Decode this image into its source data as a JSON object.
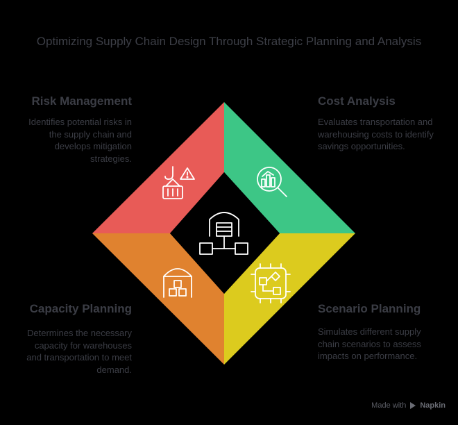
{
  "title": "Optimizing Supply Chain Design Through Strategic Planning and Analysis",
  "quadrants": [
    {
      "heading": "Risk Management",
      "description": "Identifies potential risks in the supply chain and develops mitigation strategies.",
      "color": "#e85b57",
      "icon": "hook-crate-warning-icon"
    },
    {
      "heading": "Cost Analysis",
      "description": "Evaluates transportation and warehousing costs to identify savings opportunities.",
      "color": "#3dc686",
      "icon": "magnifier-chart-icon"
    },
    {
      "heading": "Capacity Planning",
      "description": "Determines the necessary capacity for warehouses and transportation to meet demand.",
      "color": "#e0822f",
      "icon": "warehouse-boxes-icon"
    },
    {
      "heading": "Scenario Planning",
      "description": "Simulates different supply chain scenarios to assess impacts on performance.",
      "color": "#dccb1e",
      "icon": "circuit-flow-icon"
    }
  ],
  "center_icon": "warehouse-network-icon",
  "footer": {
    "made_with": "Made with",
    "brand": "Napkin"
  }
}
